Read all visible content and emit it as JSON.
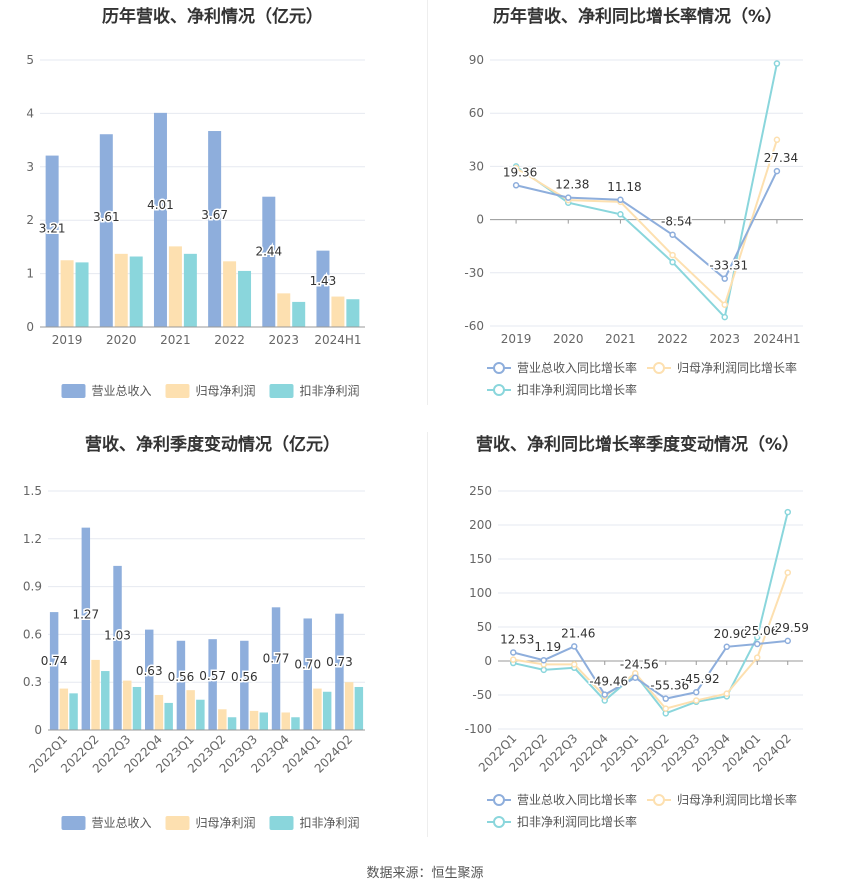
{
  "source_label": "数据来源：恒生聚源",
  "chart_data": [
    {
      "type": "bar",
      "title": "历年营收、净利情况（亿元）",
      "categories": [
        "2019",
        "2020",
        "2021",
        "2022",
        "2023",
        "2024H1"
      ],
      "ylim": [
        0,
        5
      ],
      "yticks": [
        0,
        1,
        2,
        3,
        4,
        5
      ],
      "grid": true,
      "legend_position": "bottom",
      "label_series_index": 0,
      "series": [
        {
          "name": "营业总收入",
          "color": "#8eaedc",
          "values": [
            3.21,
            3.61,
            4.01,
            3.67,
            2.44,
            1.43
          ],
          "labels": [
            "3.21",
            "3.61",
            "4.01",
            "3.67",
            "2.44",
            "1.43"
          ]
        },
        {
          "name": "归母净利润",
          "color": "#fde0b0",
          "values": [
            1.25,
            1.37,
            1.51,
            1.23,
            0.63,
            0.57
          ]
        },
        {
          "name": "扣非净利润",
          "color": "#8ad6dc",
          "values": [
            1.21,
            1.32,
            1.37,
            1.05,
            0.47,
            0.52
          ]
        }
      ]
    },
    {
      "type": "line",
      "title": "历年营收、净利同比增长率情况（%）",
      "categories": [
        "2019",
        "2020",
        "2021",
        "2022",
        "2023",
        "2024H1"
      ],
      "ylim": [
        -60,
        90
      ],
      "yticks": [
        -60,
        -30,
        0,
        30,
        60,
        90
      ],
      "grid": true,
      "legend_position": "bottom",
      "label_series_index": 0,
      "series": [
        {
          "name": "营业总收入同比增长率",
          "color": "#8eaedc",
          "values": [
            19.36,
            12.38,
            11.18,
            -8.54,
            -33.31,
            27.34
          ],
          "labels": [
            "19.36",
            "12.38",
            "11.18",
            "-8.54",
            "-33.31",
            "27.34"
          ]
        },
        {
          "name": "归母净利润同比增长率",
          "color": "#fde0b0",
          "values": [
            29.0,
            11.0,
            10.0,
            -20.0,
            -48.0,
            45.0
          ]
        },
        {
          "name": "扣非净利润同比增长率",
          "color": "#8ad6dc",
          "values": [
            30.0,
            9.5,
            3.0,
            -24.0,
            -55.0,
            88.0
          ]
        }
      ]
    },
    {
      "type": "bar",
      "title": "营收、净利季度变动情况（亿元）",
      "categories": [
        "2022Q1",
        "2022Q2",
        "2022Q3",
        "2022Q4",
        "2023Q1",
        "2023Q2",
        "2023Q3",
        "2023Q4",
        "2024Q1",
        "2024Q2"
      ],
      "ylim": [
        0,
        1.5
      ],
      "yticks": [
        0,
        0.3,
        0.6,
        0.9,
        1.2,
        1.5
      ],
      "ytick_labels": [
        "0",
        "0.3",
        "0.6",
        "0.9",
        "1.2",
        "1.5"
      ],
      "grid": true,
      "legend_position": "bottom",
      "label_series_index": 0,
      "series": [
        {
          "name": "营业总收入",
          "color": "#8eaedc",
          "values": [
            0.74,
            1.27,
            1.03,
            0.63,
            0.56,
            0.57,
            0.56,
            0.77,
            0.7,
            0.73
          ],
          "labels": [
            "0.74",
            "1.27",
            "1.03",
            "0.63",
            "0.56",
            "0.57",
            "0.56",
            "0.77",
            "0.70",
            "0.73"
          ]
        },
        {
          "name": "归母净利润",
          "color": "#fde0b0",
          "values": [
            0.26,
            0.44,
            0.31,
            0.22,
            0.25,
            0.13,
            0.12,
            0.11,
            0.26,
            0.3
          ]
        },
        {
          "name": "扣非净利润",
          "color": "#8ad6dc",
          "values": [
            0.23,
            0.37,
            0.27,
            0.17,
            0.19,
            0.08,
            0.11,
            0.08,
            0.24,
            0.27
          ]
        }
      ]
    },
    {
      "type": "line",
      "title": "营收、净利同比增长率季度变动情况（%）",
      "categories": [
        "2022Q1",
        "2022Q2",
        "2022Q3",
        "2022Q4",
        "2023Q1",
        "2023Q2",
        "2023Q3",
        "2023Q4",
        "2024Q1",
        "2024Q2"
      ],
      "ylim": [
        -100,
        250
      ],
      "yticks": [
        -100,
        -50,
        0,
        50,
        100,
        150,
        200,
        250
      ],
      "grid": true,
      "legend_position": "bottom",
      "label_series_index": 0,
      "series": [
        {
          "name": "营业总收入同比增长率",
          "color": "#8eaedc",
          "values": [
            12.53,
            1.19,
            21.46,
            -49.46,
            -24.56,
            -55.36,
            -45.92,
            20.9,
            25.06,
            29.59
          ],
          "labels": [
            "12.53",
            "1.19",
            "21.46",
            "-49.46",
            "-24.56",
            "-55.36",
            "-45.92",
            "20.90",
            "25.06",
            "29.59"
          ]
        },
        {
          "name": "归母净利润同比增长率",
          "color": "#fde0b0",
          "values": [
            2,
            -5,
            -5,
            -52,
            -18,
            -70,
            -58,
            -48,
            5,
            130
          ]
        },
        {
          "name": "扣非净利润同比增长率",
          "color": "#8ad6dc",
          "values": [
            -3,
            -13,
            -10,
            -58,
            -20,
            -77,
            -60,
            -52,
            35,
            219
          ]
        }
      ]
    }
  ]
}
